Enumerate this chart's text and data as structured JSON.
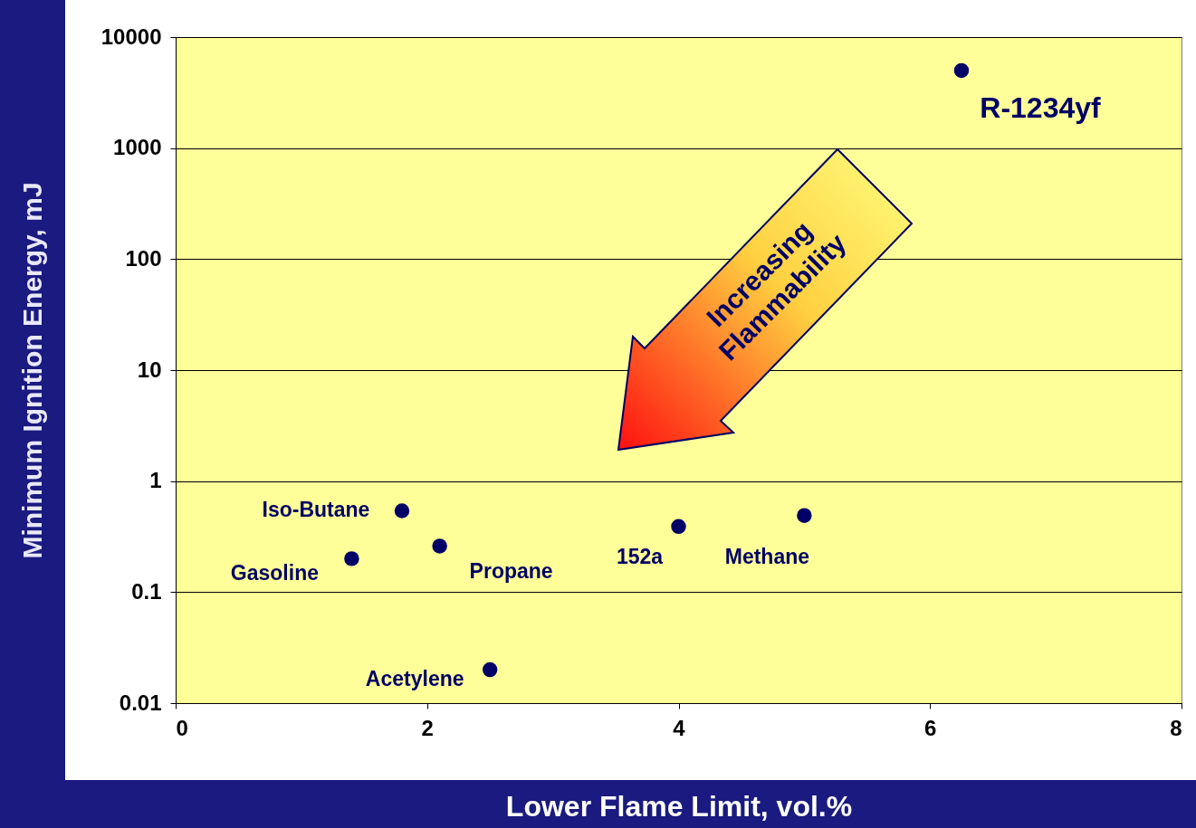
{
  "chart_data": {
    "type": "scatter",
    "xlabel": "Lower Flame Limit, vol.%",
    "ylabel": "Minimum Ignition Energy, mJ",
    "x": [
      1.4,
      1.8,
      2.1,
      2.5,
      4.0,
      5.0,
      6.25
    ],
    "series": [
      {
        "color": "#000066",
        "values": [
          0.2,
          0.54,
          0.26,
          0.02,
          0.39,
          0.49,
          5000
        ]
      }
    ],
    "xlim": [
      0,
      8
    ],
    "xticks": [
      0,
      2,
      4,
      6,
      8
    ],
    "ylim": [
      0.01,
      10000
    ],
    "yticks": [
      0.01,
      0.1,
      1,
      10,
      100,
      1000,
      10000
    ],
    "log": "y",
    "grid": "y",
    "marker": "circle",
    "annotations": [
      {
        "text": "Gasoline",
        "x": 1.4,
        "y": 0.2
      },
      {
        "text": "Iso-Butane",
        "x": 1.8,
        "y": 0.54
      },
      {
        "text": "Propane",
        "x": 2.1,
        "y": 0.26
      },
      {
        "text": "Acetylene",
        "x": 2.5,
        "y": 0.02
      },
      {
        "text": "152a",
        "x": 4.0,
        "y": 0.39
      },
      {
        "text": "Methane",
        "x": 5.0,
        "y": 0.49
      },
      {
        "text": "R-1234yf",
        "x": 6.25,
        "y": 5000
      },
      "Increasing Flammability"
    ]
  }
}
